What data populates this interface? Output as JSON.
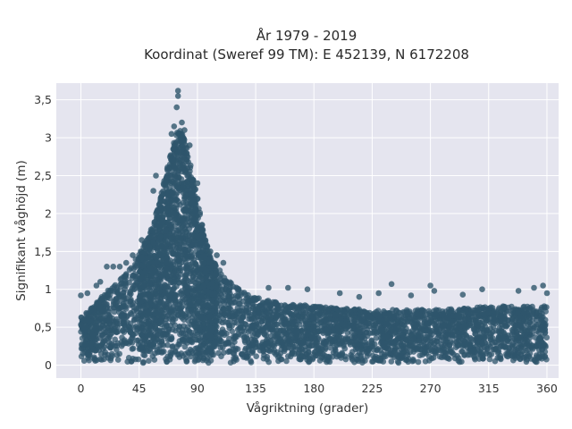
{
  "chart_data": {
    "type": "scatter",
    "title_line1": "År 1979 - 2019",
    "title_line2": "Koordinat (Sweref 99 TM): E 452139, N 6172208",
    "xlabel": "Vågriktning (grader)",
    "ylabel": "Signifikant våghöjd (m)",
    "xlim": [
      -19,
      369
    ],
    "ylim": [
      -0.17,
      3.72
    ],
    "x_ticks": [
      0,
      45,
      90,
      135,
      180,
      225,
      270,
      315,
      360
    ],
    "x_tick_labels": [
      "0",
      "45",
      "90",
      "135",
      "180",
      "225",
      "270",
      "315",
      "360"
    ],
    "y_ticks": [
      0,
      0.5,
      1,
      1.5,
      2,
      2.5,
      3,
      3.5
    ],
    "y_tick_labels": [
      "0",
      "0,5",
      "1",
      "1,5",
      "2",
      "2,5",
      "3",
      "3,5"
    ],
    "grid": true,
    "point_color": "#2f566c",
    "background_color": "#e5e5ef",
    "envelope": {
      "direction": [
        0,
        10,
        20,
        30,
        40,
        45,
        50,
        55,
        60,
        65,
        70,
        75,
        80,
        85,
        90,
        95,
        100,
        110,
        120,
        130,
        140,
        160,
        180,
        200,
        225,
        250,
        270,
        300,
        315,
        330,
        345,
        360
      ],
      "typical_max_height": [
        0.6,
        0.75,
        0.95,
        1.1,
        1.3,
        1.45,
        1.6,
        1.8,
        2.1,
        2.45,
        2.8,
        3.1,
        3.0,
        2.6,
        2.2,
        1.7,
        1.4,
        1.15,
        1.0,
        0.9,
        0.85,
        0.78,
        0.75,
        0.72,
        0.7,
        0.7,
        0.7,
        0.72,
        0.75,
        0.75,
        0.75,
        0.75
      ]
    },
    "notable_points": [
      {
        "x": 75,
        "y": 3.62
      },
      {
        "x": 75,
        "y": 3.55
      },
      {
        "x": 74,
        "y": 3.4
      },
      {
        "x": 78,
        "y": 3.2
      },
      {
        "x": 72,
        "y": 3.15
      },
      {
        "x": 80,
        "y": 3.1
      },
      {
        "x": 70,
        "y": 3.05
      },
      {
        "x": 84,
        "y": 2.9
      },
      {
        "x": 90,
        "y": 2.4
      },
      {
        "x": 58,
        "y": 2.5
      },
      {
        "x": 56,
        "y": 2.3
      },
      {
        "x": 100,
        "y": 1.5
      },
      {
        "x": 105,
        "y": 1.45
      },
      {
        "x": 110,
        "y": 1.35
      },
      {
        "x": 20,
        "y": 1.3
      },
      {
        "x": 25,
        "y": 1.3
      },
      {
        "x": 30,
        "y": 1.3
      },
      {
        "x": 35,
        "y": 1.35
      },
      {
        "x": 40,
        "y": 1.45
      },
      {
        "x": 47,
        "y": 1.65
      },
      {
        "x": 145,
        "y": 1.02
      },
      {
        "x": 160,
        "y": 1.02
      },
      {
        "x": 175,
        "y": 1.0
      },
      {
        "x": 200,
        "y": 0.95
      },
      {
        "x": 215,
        "y": 0.9
      },
      {
        "x": 230,
        "y": 0.95
      },
      {
        "x": 240,
        "y": 1.07
      },
      {
        "x": 255,
        "y": 0.92
      },
      {
        "x": 270,
        "y": 1.05
      },
      {
        "x": 273,
        "y": 0.98
      },
      {
        "x": 295,
        "y": 0.93
      },
      {
        "x": 310,
        "y": 1.0
      },
      {
        "x": 338,
        "y": 0.98
      },
      {
        "x": 350,
        "y": 1.02
      },
      {
        "x": 357,
        "y": 1.05
      },
      {
        "x": 360,
        "y": 0.95
      },
      {
        "x": 0,
        "y": 0.92
      },
      {
        "x": 5,
        "y": 0.95
      },
      {
        "x": 12,
        "y": 1.05
      },
      {
        "x": 15,
        "y": 1.1
      }
    ]
  }
}
